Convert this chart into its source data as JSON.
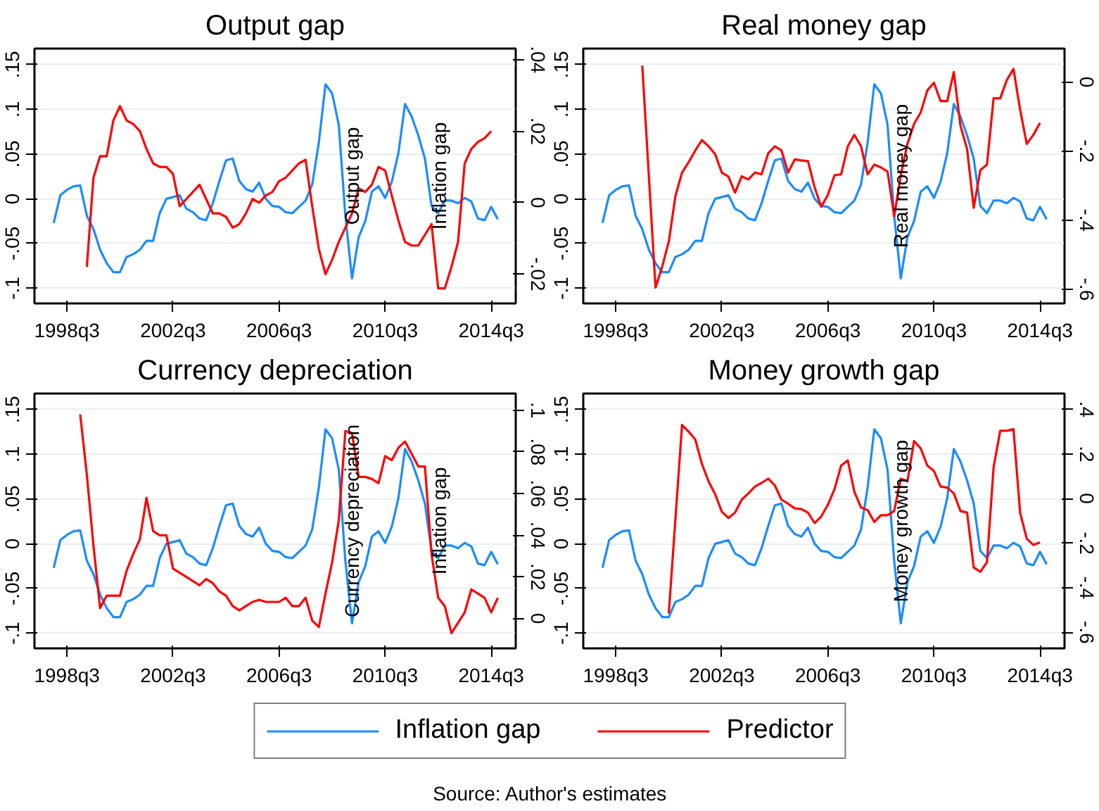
{
  "chart_data": [
    {
      "type": "line",
      "title": "Output gap",
      "legend": "bottom",
      "grid": "y",
      "categories": [
        null,
        null,
        "1998q3",
        null,
        null,
        null,
        null,
        null,
        null,
        null,
        null,
        null,
        null,
        null,
        null,
        null,
        null,
        null,
        "2002q3",
        null,
        null,
        null,
        null,
        null,
        null,
        null,
        null,
        null,
        null,
        null,
        null,
        null,
        null,
        null,
        "2006q3",
        null,
        null,
        null,
        null,
        null,
        null,
        null,
        null,
        null,
        null,
        null,
        null,
        null,
        null,
        null,
        "2010q3",
        null,
        null,
        null,
        null,
        null,
        null,
        null,
        null,
        null,
        null,
        null,
        null,
        null,
        null,
        null,
        "2014q3",
        null
      ],
      "ylim": [
        -0.117,
        0.168
      ],
      "yticks": [
        {
          "value": -0.1,
          "label": "-.1"
        },
        {
          "value": -0.05,
          "label": "-.05"
        },
        0,
        {
          "value": 0.05,
          "label": ".05"
        },
        {
          "value": 0.1,
          "label": ".1"
        },
        {
          "value": 0.15,
          "label": ".15"
        }
      ],
      "y2lim": [
        -0.0282,
        0.0431
      ],
      "y2ticks": [
        {
          "value": -0.02,
          "label": "-.02"
        },
        0,
        {
          "value": 0.02,
          "label": ".02"
        },
        {
          "value": 0.04,
          "label": ".04"
        }
      ],
      "y2label": "Output gap",
      "annotations": [
        "Inflation gap"
      ],
      "series": [
        {
          "name": "Inflation gap",
          "color": "#1a8cff",
          "values": [
            -0.027,
            0.004,
            0.01,
            0.014,
            0.015,
            -0.019,
            -0.034,
            -0.057,
            -0.072,
            -0.082,
            -0.082,
            -0.065,
            -0.062,
            -0.057,
            -0.047,
            -0.047,
            -0.016,
            0.0,
            0.002,
            0.004,
            -0.011,
            -0.015,
            -0.022,
            -0.024,
            -0.005,
            0.02,
            0.043,
            0.045,
            0.02,
            0.011,
            0.008,
            0.018,
            0.0,
            -0.008,
            -0.009,
            -0.015,
            -0.016,
            -0.009,
            -0.002,
            0.016,
            0.063,
            0.128,
            0.118,
            0.083,
            -0.019,
            -0.089,
            -0.043,
            -0.025,
            0.008,
            0.014,
            0.001,
            0.019,
            0.051,
            0.106,
            0.092,
            0.071,
            0.045,
            -0.008,
            -0.016,
            -0.002,
            -0.002,
            -0.005,
            0.001,
            -0.003,
            -0.022,
            -0.024,
            -0.009,
            -0.023
          ]
        },
        {
          "name": "Predictor",
          "color": "#ff0000",
          "axis": "y2",
          "values": [
            null,
            null,
            null,
            null,
            null,
            -0.018,
            0.007,
            0.013,
            0.013,
            0.023,
            0.027,
            0.023,
            0.022,
            0.02,
            0.015,
            0.011,
            0.01,
            0.01,
            0.008,
            -0.001,
            0.001,
            0.003,
            0.005,
            0.001,
            -0.003,
            -0.003,
            -0.004,
            -0.007,
            -0.006,
            -0.003,
            0.001,
            0.0,
            0.002,
            0.003,
            0.006,
            0.007,
            0.009,
            0.011,
            0.012,
            -0.001,
            -0.013,
            -0.02,
            -0.016,
            -0.011,
            -0.007,
            -0.003,
            0.004,
            0.003,
            0.005,
            0.01,
            0.009,
            0.002,
            -0.005,
            -0.011,
            -0.012,
            -0.012,
            -0.009,
            -0.006,
            -0.024,
            -0.024,
            -0.018,
            -0.011,
            0.011,
            0.015,
            0.017,
            0.018,
            0.02,
            null
          ]
        }
      ]
    },
    {
      "type": "line",
      "title": "Real money gap",
      "grid": "y",
      "categories": [
        null,
        null,
        "1998q3",
        null,
        null,
        null,
        null,
        null,
        null,
        null,
        null,
        null,
        null,
        null,
        null,
        null,
        null,
        null,
        "2002q3",
        null,
        null,
        null,
        null,
        null,
        null,
        null,
        null,
        null,
        null,
        null,
        null,
        null,
        null,
        null,
        "2006q3",
        null,
        null,
        null,
        null,
        null,
        null,
        null,
        null,
        null,
        null,
        null,
        null,
        null,
        null,
        null,
        "2010q3",
        null,
        null,
        null,
        null,
        null,
        null,
        null,
        null,
        null,
        null,
        null,
        null,
        null,
        null,
        null,
        "2014q3",
        null
      ],
      "ylim": [
        -0.117,
        0.168
      ],
      "yticks": [
        {
          "value": -0.1,
          "label": "-.1"
        },
        {
          "value": -0.05,
          "label": "-.05"
        },
        0,
        {
          "value": 0.05,
          "label": ".05"
        },
        {
          "value": 0.1,
          "label": ".1"
        },
        {
          "value": 0.15,
          "label": ".15"
        }
      ],
      "y2lim": [
        -0.641,
        0.097
      ],
      "y2ticks": [
        {
          "value": -0.6,
          "label": "-.6"
        },
        {
          "value": -0.4,
          "label": "-.4"
        },
        {
          "value": -0.2,
          "label": "-.2"
        },
        0
      ],
      "y2label": "Real money gap",
      "series": [
        {
          "color": "#1a8cff",
          "values": [
            -0.027,
            0.004,
            0.01,
            0.014,
            0.015,
            -0.019,
            -0.034,
            -0.057,
            -0.072,
            -0.082,
            -0.082,
            -0.065,
            -0.062,
            -0.057,
            -0.047,
            -0.047,
            -0.016,
            0.0,
            0.002,
            0.004,
            -0.011,
            -0.015,
            -0.022,
            -0.024,
            -0.005,
            0.02,
            0.043,
            0.045,
            0.02,
            0.011,
            0.008,
            0.018,
            0.0,
            -0.008,
            -0.009,
            -0.015,
            -0.016,
            -0.009,
            -0.002,
            0.016,
            0.063,
            0.128,
            0.118,
            0.083,
            -0.019,
            -0.089,
            -0.043,
            -0.025,
            0.008,
            0.014,
            0.001,
            0.019,
            0.051,
            0.106,
            0.092,
            0.071,
            0.045,
            -0.008,
            -0.016,
            -0.002,
            -0.002,
            -0.005,
            0.001,
            -0.003,
            -0.022,
            -0.024,
            -0.009,
            -0.023
          ]
        },
        {
          "color": "#ff0000",
          "axis": "y2",
          "values": [
            null,
            null,
            null,
            null,
            null,
            null,
            0.048,
            null,
            -0.595,
            -0.535,
            -0.462,
            -0.33,
            -0.262,
            -0.232,
            -0.198,
            -0.168,
            -0.186,
            -0.209,
            -0.262,
            -0.274,
            -0.32,
            -0.273,
            -0.282,
            -0.262,
            -0.267,
            -0.206,
            -0.186,
            -0.198,
            -0.262,
            -0.224,
            -0.227,
            -0.229,
            -0.305,
            -0.361,
            -0.327,
            -0.27,
            -0.267,
            -0.186,
            -0.153,
            -0.186,
            -0.267,
            -0.239,
            -0.247,
            -0.259,
            -0.388,
            -0.27,
            -0.179,
            -0.121,
            -0.088,
            -0.024,
            -0.002,
            -0.055,
            -0.055,
            0.029,
            -0.126,
            -0.194,
            -0.364,
            -0.255,
            -0.239,
            -0.047,
            -0.047,
            0.006,
            0.038,
            -0.08,
            -0.179,
            -0.153,
            -0.118,
            null
          ]
        }
      ]
    },
    {
      "type": "line",
      "title": "Currency depreciation",
      "grid": "y",
      "categories": [
        null,
        null,
        "1998q3",
        null,
        null,
        null,
        null,
        null,
        null,
        null,
        null,
        null,
        null,
        null,
        null,
        null,
        null,
        null,
        "2002q3",
        null,
        null,
        null,
        null,
        null,
        null,
        null,
        null,
        null,
        null,
        null,
        null,
        null,
        null,
        null,
        "2006q3",
        null,
        null,
        null,
        null,
        null,
        null,
        null,
        null,
        null,
        null,
        null,
        null,
        null,
        null,
        null,
        "2010q3",
        null,
        null,
        null,
        null,
        null,
        null,
        null,
        null,
        null,
        null,
        null,
        null,
        null,
        null,
        null,
        "2014q3",
        null
      ],
      "ylim": [
        -0.117,
        0.168
      ],
      "yticks": [
        {
          "value": -0.1,
          "label": "-.1"
        },
        {
          "value": -0.05,
          "label": "-.05"
        },
        0,
        {
          "value": 0.05,
          "label": ".05"
        },
        {
          "value": 0.1,
          "label": ".1"
        },
        {
          "value": 0.15,
          "label": ".15"
        }
      ],
      "y2lim": [
        -0.0143,
        0.108
      ],
      "y2ticks": [
        0,
        {
          "value": 0.02,
          "label": ".02"
        },
        {
          "value": 0.04,
          "label": ".04"
        },
        {
          "value": 0.06,
          "label": ".06"
        },
        {
          "value": 0.08,
          "label": ".08"
        },
        {
          "value": 0.1,
          "label": ".1"
        }
      ],
      "y2label": "Currency depreciation",
      "annotations": [
        "Inflation gap"
      ],
      "series": [
        {
          "color": "#1a8cff",
          "values": [
            -0.027,
            0.004,
            0.01,
            0.014,
            0.015,
            -0.019,
            -0.034,
            -0.057,
            -0.072,
            -0.082,
            -0.082,
            -0.065,
            -0.062,
            -0.057,
            -0.047,
            -0.047,
            -0.016,
            0.0,
            0.002,
            0.004,
            -0.011,
            -0.015,
            -0.022,
            -0.024,
            -0.005,
            0.02,
            0.043,
            0.045,
            0.02,
            0.011,
            0.008,
            0.018,
            0.0,
            -0.008,
            -0.009,
            -0.015,
            -0.016,
            -0.009,
            -0.002,
            0.016,
            0.063,
            0.128,
            0.118,
            0.083,
            -0.019,
            -0.089,
            -0.043,
            -0.025,
            0.008,
            0.014,
            0.001,
            0.019,
            0.051,
            0.106,
            0.092,
            0.071,
            0.045,
            -0.008,
            -0.016,
            -0.002,
            -0.002,
            -0.005,
            0.001,
            -0.003,
            -0.022,
            -0.024,
            -0.009,
            -0.023
          ]
        },
        {
          "color": "#ff0000",
          "axis": "y2",
          "values": [
            null,
            null,
            null,
            null,
            0.098,
            0.069,
            0.035,
            0.005,
            0.011,
            0.011,
            0.011,
            0.023,
            0.031,
            0.038,
            0.058,
            0.042,
            0.04,
            0.04,
            0.024,
            0.022,
            0.02,
            0.018,
            0.016,
            0.019,
            0.017,
            0.013,
            0.011,
            0.006,
            0.004,
            0.006,
            0.008,
            0.009,
            0.008,
            0.008,
            0.008,
            0.01,
            0.006,
            0.006,
            0.01,
            -0.001,
            -0.004,
            0.012,
            0.027,
            0.047,
            0.09,
            0.089,
            0.068,
            0.068,
            0.067,
            0.065,
            0.078,
            0.076,
            0.082,
            0.085,
            0.079,
            0.073,
            0.073,
            0.031,
            0.01,
            0.006,
            -0.007,
            -0.002,
            0.003,
            0.014,
            0.012,
            0.01,
            0.003,
            0.01
          ]
        }
      ]
    },
    {
      "type": "line",
      "title": "Money growth gap",
      "grid": "y",
      "categories": [
        null,
        null,
        "1998q3",
        null,
        null,
        null,
        null,
        null,
        null,
        null,
        null,
        null,
        null,
        null,
        null,
        null,
        null,
        null,
        "2002q3",
        null,
        null,
        null,
        null,
        null,
        null,
        null,
        null,
        null,
        null,
        null,
        null,
        null,
        null,
        null,
        "2006q3",
        null,
        null,
        null,
        null,
        null,
        null,
        null,
        null,
        null,
        null,
        null,
        null,
        null,
        null,
        null,
        "2010q3",
        null,
        null,
        null,
        null,
        null,
        null,
        null,
        null,
        null,
        null,
        null,
        null,
        null,
        null,
        null,
        "2014q3",
        null
      ],
      "ylim": [
        -0.117,
        0.168
      ],
      "yticks": [
        {
          "value": -0.1,
          "label": "-.1"
        },
        {
          "value": -0.05,
          "label": "-.05"
        },
        0,
        {
          "value": 0.05,
          "label": ".05"
        },
        {
          "value": 0.1,
          "label": ".1"
        },
        {
          "value": 0.15,
          "label": ".15"
        }
      ],
      "y2lim": [
        -0.672,
        0.471
      ],
      "y2ticks": [
        {
          "value": -0.6,
          "label": "-.6"
        },
        {
          "value": -0.4,
          "label": "-.4"
        },
        {
          "value": -0.2,
          "label": "-.2"
        },
        0,
        {
          "value": 0.2,
          "label": ".2"
        },
        {
          "value": 0.4,
          "label": ".4"
        }
      ],
      "y2label": "Money growth gap",
      "annotations": [
        "Source: Author's estimates"
      ],
      "series": [
        {
          "color": "#1a8cff",
          "values": [
            -0.027,
            0.004,
            0.01,
            0.014,
            0.015,
            -0.019,
            -0.034,
            -0.057,
            -0.072,
            -0.082,
            -0.082,
            -0.065,
            -0.062,
            -0.057,
            -0.047,
            -0.047,
            -0.016,
            0.0,
            0.002,
            0.004,
            -0.011,
            -0.015,
            -0.022,
            -0.024,
            -0.005,
            0.02,
            0.043,
            0.045,
            0.02,
            0.011,
            0.008,
            0.018,
            0.0,
            -0.008,
            -0.009,
            -0.015,
            -0.016,
            -0.009,
            -0.002,
            0.016,
            0.063,
            0.128,
            0.118,
            0.083,
            -0.019,
            -0.089,
            -0.043,
            -0.025,
            0.008,
            0.014,
            0.001,
            0.019,
            0.051,
            0.106,
            0.092,
            0.071,
            0.045,
            -0.008,
            -0.016,
            -0.002,
            -0.002,
            -0.005,
            0.001,
            -0.003,
            -0.022,
            -0.024,
            -0.009,
            -0.023
          ]
        },
        {
          "color": "#ff0000",
          "axis": "y2",
          "values": [
            null,
            null,
            null,
            null,
            null,
            null,
            null,
            null,
            null,
            null,
            -0.515,
            null,
            0.33,
            0.3,
            0.265,
            0.155,
            0.077,
            0.019,
            -0.059,
            -0.087,
            -0.063,
            -0.005,
            0.023,
            0.054,
            0.07,
            0.089,
            0.059,
            -0.005,
            -0.023,
            -0.044,
            -0.047,
            -0.063,
            -0.11,
            -0.08,
            -0.028,
            0.042,
            0.148,
            0.171,
            0.03,
            -0.04,
            -0.052,
            -0.105,
            -0.075,
            -0.075,
            -0.056,
            0.089,
            0.077,
            0.258,
            0.225,
            0.148,
            0.124,
            0.054,
            0.049,
            0.023,
            -0.056,
            -0.063,
            -0.309,
            -0.328,
            -0.286,
            0.141,
            0.304,
            0.304,
            0.311,
            -0.063,
            -0.18,
            -0.208,
            -0.197,
            null
          ]
        }
      ]
    }
  ]
}
